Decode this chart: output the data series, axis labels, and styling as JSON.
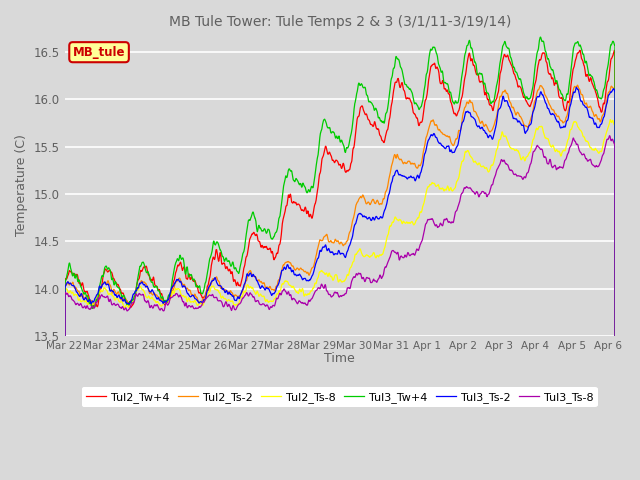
{
  "title": "MB Tule Tower: Tule Temps 2 & 3 (3/1/11-3/19/14)",
  "xlabel": "Time",
  "ylabel": "Temperature (C)",
  "ylim": [
    13.5,
    16.7
  ],
  "xlim_days": [
    0,
    15.2
  ],
  "x_tick_labels": [
    "Mar 22",
    "Mar 23",
    "Mar 24",
    "Mar 25",
    "Mar 26",
    "Mar 27",
    "Mar 28",
    "Mar 29",
    "Mar 30",
    "Mar 31",
    "Apr 1",
    "Apr 2",
    "Apr 3",
    "Apr 4",
    "Apr 5",
    "Apr 6"
  ],
  "x_tick_positions": [
    0,
    1,
    2,
    3,
    4,
    5,
    6,
    7,
    8,
    9,
    10,
    11,
    12,
    13,
    14,
    15
  ],
  "series_labels": [
    "Tul2_Tw+4",
    "Tul2_Ts-2",
    "Tul2_Ts-8",
    "Tul3_Tw+4",
    "Tul3_Ts-2",
    "Tul3_Ts-8"
  ],
  "series_colors": [
    "#ff0000",
    "#ff8800",
    "#ffff00",
    "#00cc00",
    "#0000ff",
    "#aa00aa"
  ],
  "line_width": 0.9,
  "background_color": "#d9d9d9",
  "plot_bg_color": "#d9d9d9",
  "grid_color": "#ffffff",
  "title_color": "#606060",
  "legend_box_color": "#ffff99",
  "legend_box_edge": "#cc0000"
}
